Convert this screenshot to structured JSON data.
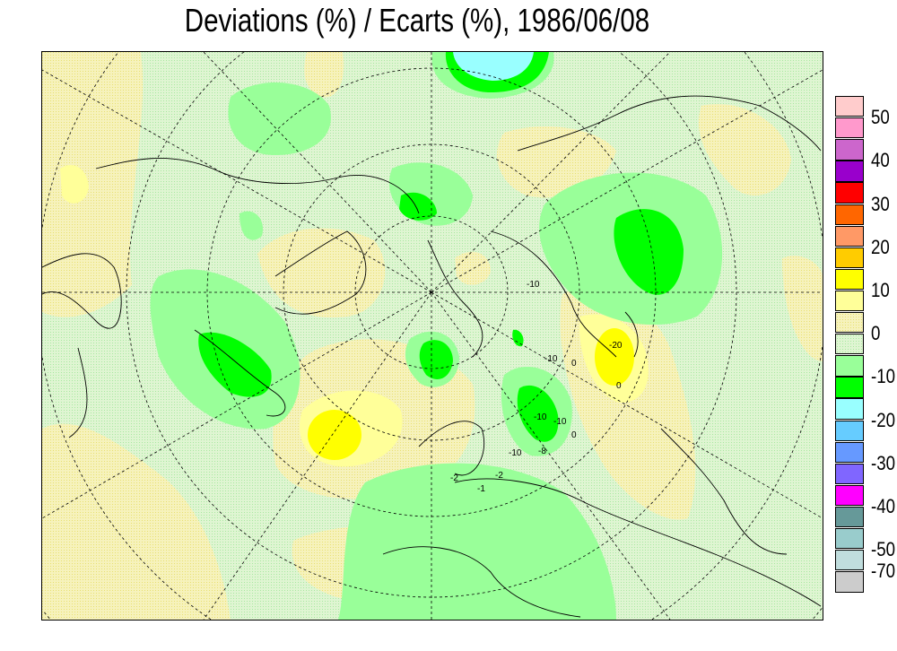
{
  "title": "Deviations (%) / Ecarts (%), 1986/06/08",
  "legend": {
    "colors": [
      "#ffcccc",
      "#ff99cc",
      "#cc66cc",
      "#9900cc",
      "#ff0000",
      "#ff6600",
      "#ff9966",
      "#ffcc00",
      "#ffff00",
      "#ffff99",
      "#f2f0b8",
      "#d6f2c8",
      "#99ff99",
      "#00ff00",
      "#99ffff",
      "#66ccff",
      "#6699ff",
      "#8066ff",
      "#ff00ff",
      "#669999",
      "#99cccc",
      "#c0dddd",
      "#cccccc"
    ],
    "labels": [
      "50",
      "40",
      "30",
      "20",
      "10",
      "0",
      "-10",
      "-20",
      "-30",
      "-40",
      "-50",
      "-70"
    ]
  },
  "map": {
    "projection": "polar stereographic, northern hemisphere",
    "background_color": "#d6f2c8",
    "contour_labels": [
      "-10",
      "-10",
      "-20",
      "0",
      "-10",
      "-10",
      "-8",
      "-10",
      "0",
      "-2",
      "-1",
      "0",
      "-2"
    ]
  }
}
